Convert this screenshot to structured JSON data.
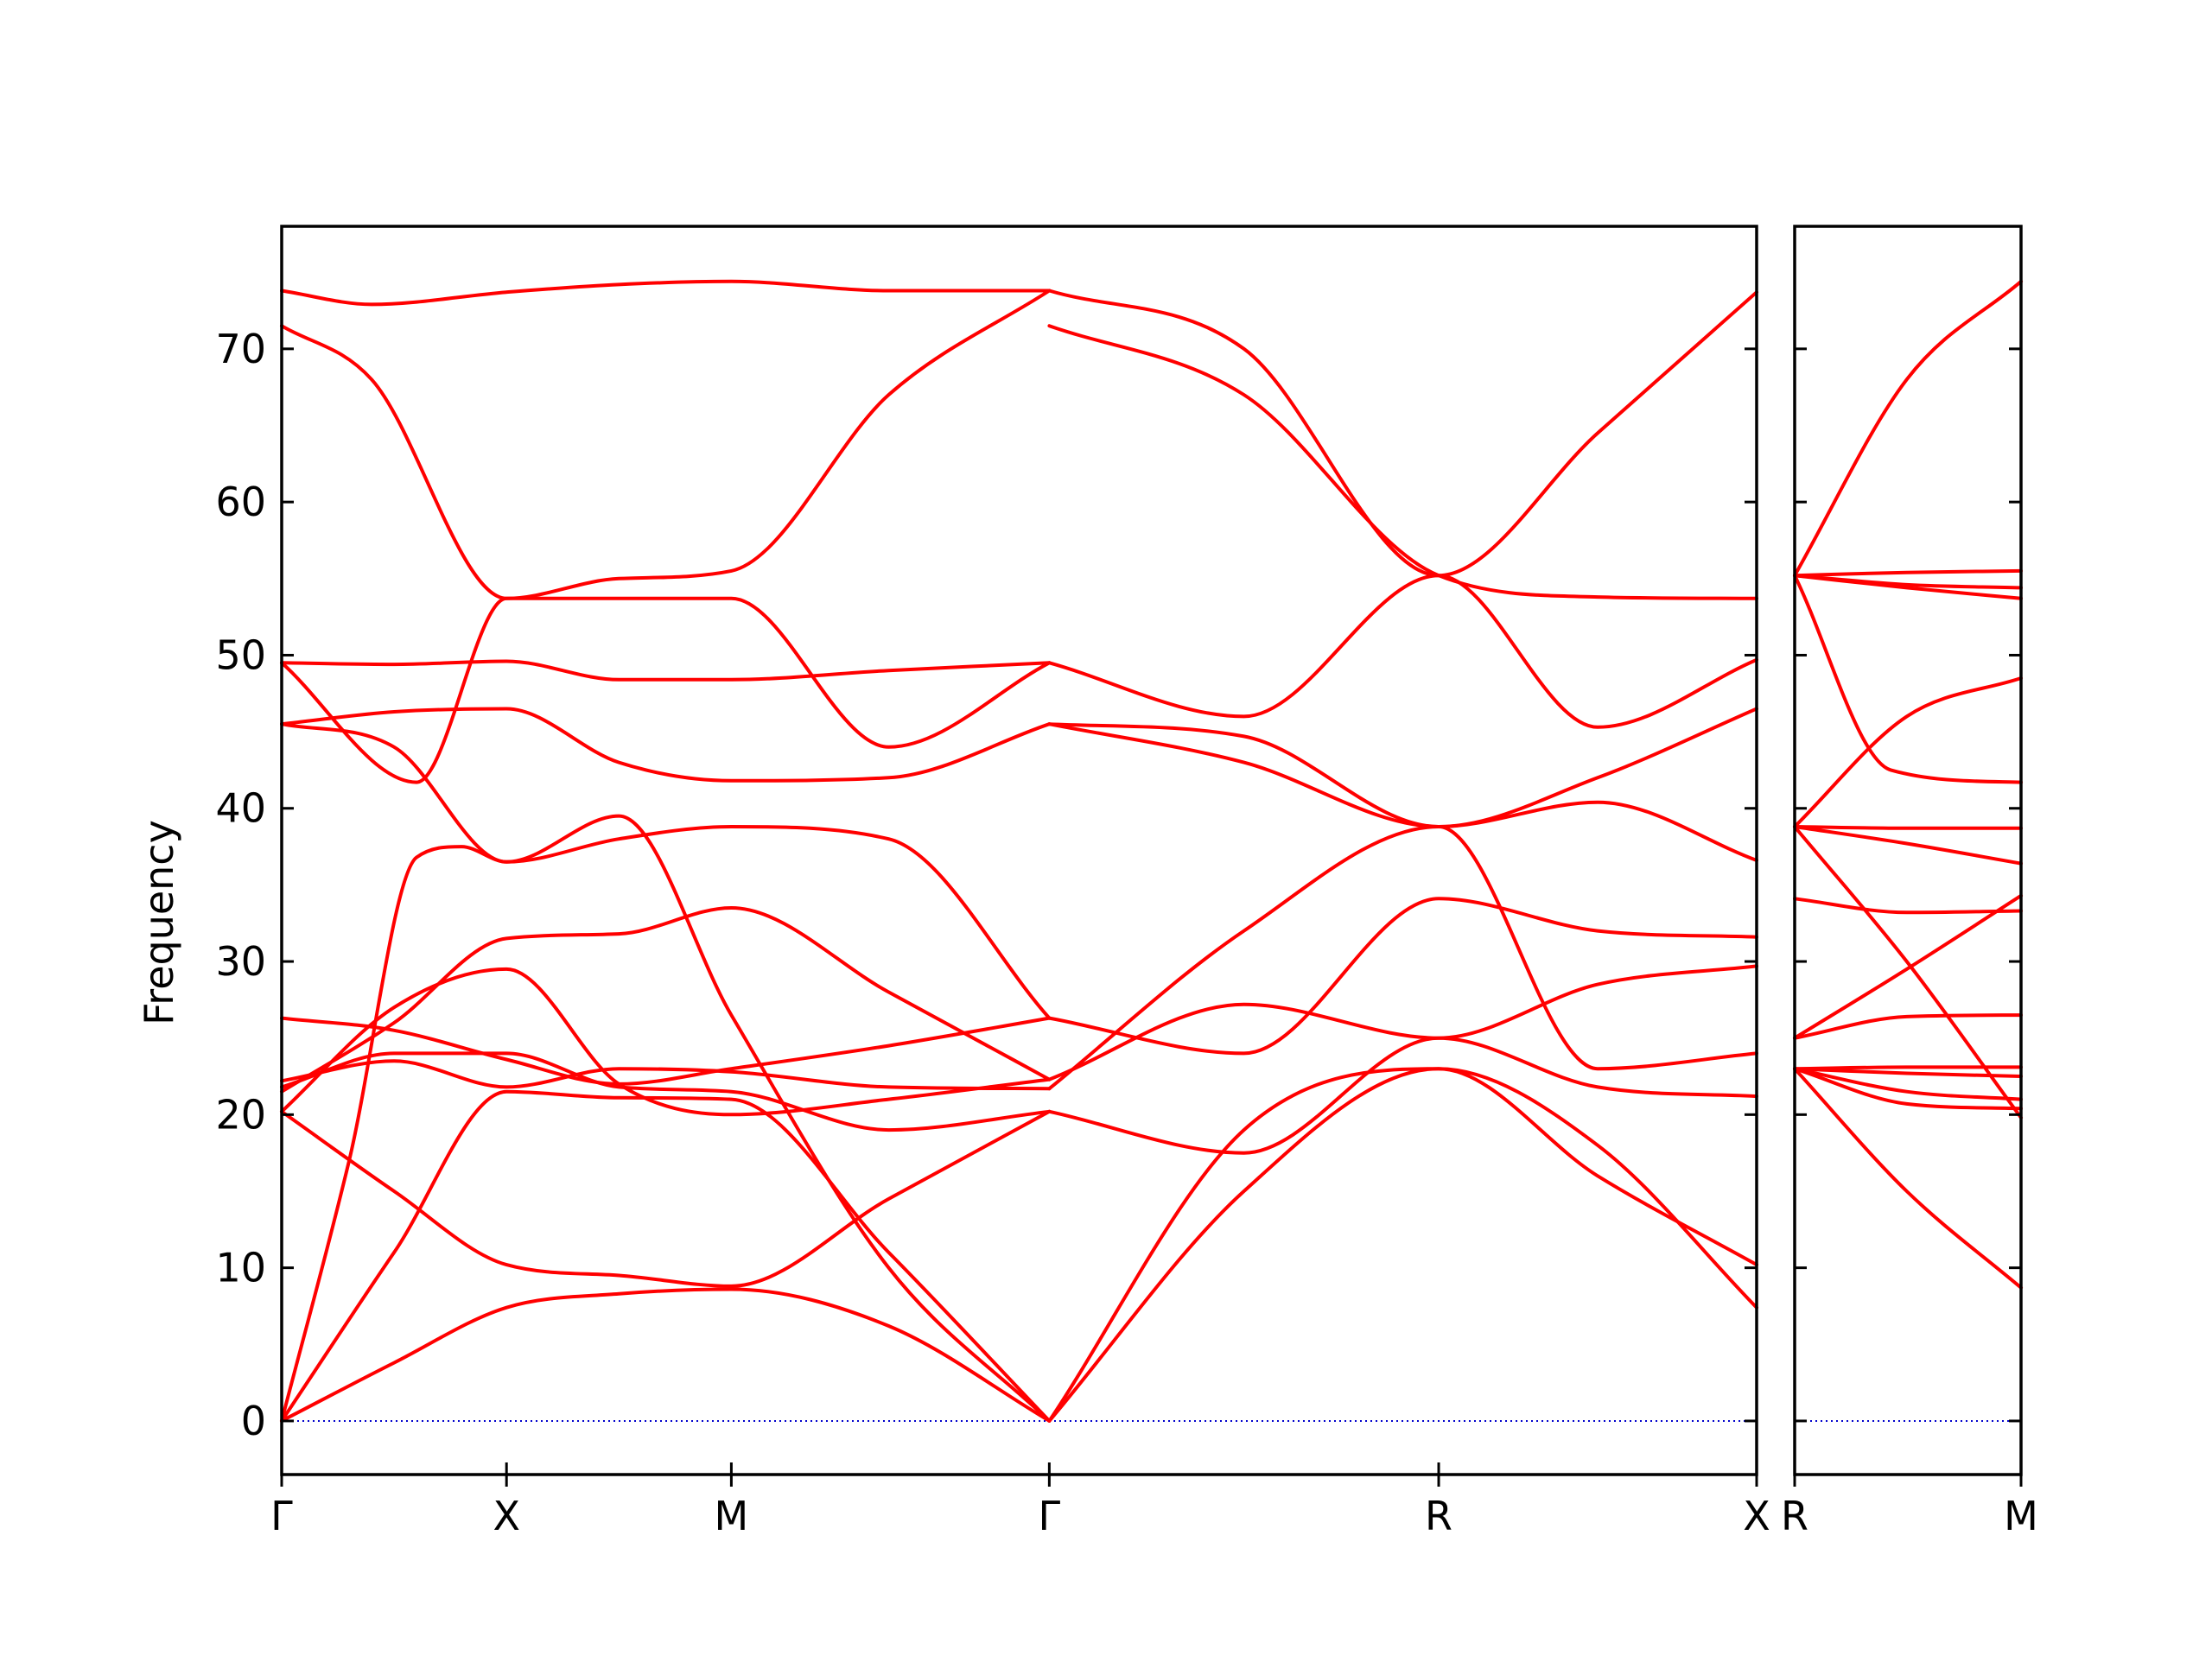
{
  "chart_data": {
    "type": "line",
    "title": "",
    "ylabel": "Frequency",
    "xlabel": "",
    "ylim": [
      -3.5,
      78
    ],
    "yticks": [
      0,
      10,
      20,
      30,
      40,
      50,
      60,
      70
    ],
    "ytick_labels": [
      "0",
      "10",
      "20",
      "30",
      "40",
      "50",
      "60",
      "70"
    ],
    "grid": false,
    "legend": "none",
    "colors": {
      "bands": "#ff0000",
      "zero_line": "#0000cc",
      "axes": "#000000"
    },
    "segments": [
      {
        "name": "",
        "path": [
          "Γ",
          "X",
          "M",
          "Γ",
          "R",
          "X"
        ],
        "kpoints": [
          0.0,
          0.5,
          1.0,
          1.7071,
          2.5731,
          3.2802
        ],
        "bands": [
          [
            [
              0,
              0
            ],
            [
              0.25,
              3.8
            ],
            [
              0.5,
              7.4
            ],
            [
              0.75,
              8.3
            ],
            [
              1.0,
              8.6
            ],
            [
              1.35,
              6.2
            ],
            [
              1.7071,
              0
            ]
          ],
          [
            [
              0,
              0
            ],
            [
              0.25,
              11
            ],
            [
              0.5,
              21.5
            ],
            [
              0.75,
              21.1
            ],
            [
              1.0,
              21.0
            ],
            [
              1.35,
              11
            ],
            [
              1.7071,
              0
            ]
          ],
          [
            [
              0,
              0
            ],
            [
              0.15,
              17
            ],
            [
              0.3,
              36.8
            ],
            [
              0.4,
              37.5
            ],
            [
              0.5,
              36.5
            ],
            [
              0.75,
              39.5
            ],
            [
              1.0,
              26.5
            ],
            [
              1.35,
              10
            ],
            [
              1.7071,
              0
            ]
          ],
          [
            [
              0,
              20.2
            ],
            [
              0.25,
              15
            ],
            [
              0.5,
              10.2
            ],
            [
              0.75,
              9.5
            ],
            [
              1.0,
              8.8
            ],
            [
              1.35,
              14.5
            ],
            [
              1.7071,
              20.2
            ]
          ],
          [
            [
              0,
              20.2
            ],
            [
              0.25,
              27
            ],
            [
              0.5,
              29.5
            ],
            [
              0.75,
              22
            ],
            [
              1.0,
              20.0
            ],
            [
              1.35,
              21
            ],
            [
              1.7071,
              22.3
            ]
          ],
          [
            [
              0,
              21.5
            ],
            [
              0.25,
              26
            ],
            [
              0.5,
              31.5
            ],
            [
              0.75,
              31.8
            ],
            [
              1.0,
              33.5
            ],
            [
              1.35,
              28
            ],
            [
              1.7071,
              22.3
            ]
          ],
          [
            [
              0,
              21.8
            ],
            [
              0.25,
              24
            ],
            [
              0.5,
              24
            ],
            [
              0.75,
              21.8
            ],
            [
              1.0,
              21.5
            ],
            [
              1.35,
              19
            ],
            [
              1.7071,
              20.2
            ]
          ],
          [
            [
              0,
              22.2
            ],
            [
              0.25,
              23.5
            ],
            [
              0.5,
              21.8
            ],
            [
              0.75,
              23
            ],
            [
              1.0,
              22.8
            ],
            [
              1.35,
              21.8
            ],
            [
              1.7071,
              21.7
            ]
          ],
          [
            [
              0,
              26.3
            ],
            [
              0.25,
              25.5
            ],
            [
              0.5,
              23.6
            ],
            [
              0.75,
              22
            ],
            [
              1.0,
              23
            ],
            [
              1.35,
              24.5
            ],
            [
              1.7071,
              26.3
            ]
          ],
          [
            [
              0,
              45.5
            ],
            [
              0.25,
              44
            ],
            [
              0.5,
              36.5
            ],
            [
              0.75,
              38
            ],
            [
              1.0,
              38.8
            ],
            [
              1.35,
              38
            ],
            [
              1.7071,
              26.3
            ]
          ],
          [
            [
              0,
              45.5
            ],
            [
              0.25,
              46.3
            ],
            [
              0.5,
              46.5
            ],
            [
              0.75,
              43
            ],
            [
              1.0,
              41.8
            ],
            [
              1.35,
              42
            ],
            [
              1.7071,
              45.5
            ]
          ],
          [
            [
              0,
              49.5
            ],
            [
              0.3,
              41.7
            ],
            [
              0.5,
              53.7
            ],
            [
              0.75,
              53.7
            ],
            [
              1.0,
              53.7
            ],
            [
              1.35,
              44
            ],
            [
              1.7071,
              49.5
            ]
          ],
          [
            [
              0,
              49.5
            ],
            [
              0.25,
              49.4
            ],
            [
              0.5,
              49.6
            ],
            [
              0.75,
              48.4
            ],
            [
              1.0,
              48.4
            ],
            [
              1.35,
              49
            ],
            [
              1.7071,
              49.5
            ]
          ],
          [
            [
              0,
              71.5
            ],
            [
              0.2,
              68
            ],
            [
              0.5,
              53.7
            ],
            [
              0.75,
              55
            ],
            [
              1.0,
              55.5
            ],
            [
              1.35,
              67
            ],
            [
              1.7071,
              73.8
            ]
          ],
          [
            [
              0,
              73.8
            ],
            [
              0.2,
              72.9
            ],
            [
              0.5,
              73.7
            ],
            [
              0.75,
              74.2
            ],
            [
              1.0,
              74.4
            ],
            [
              1.35,
              73.8
            ],
            [
              1.7071,
              73.8
            ]
          ],
          [
            [
              1.7071,
              73.8
            ],
            [
              2.14,
              70
            ],
            [
              2.5731,
              55.2
            ],
            [
              2.9266,
              64.5
            ],
            [
              3.2802,
              73.7
            ]
          ],
          [
            [
              1.7071,
              71.5
            ],
            [
              2.14,
              67
            ],
            [
              2.5731,
              55.2
            ],
            [
              2.9266,
              53.8
            ],
            [
              3.2802,
              53.7
            ]
          ],
          [
            [
              1.7071,
              49.5
            ],
            [
              2.14,
              46
            ],
            [
              2.5731,
              55.2
            ],
            [
              2.9266,
              45.3
            ],
            [
              3.2802,
              49.7
            ]
          ],
          [
            [
              1.7071,
              45.5
            ],
            [
              2.14,
              44.7
            ],
            [
              2.5731,
              38.8
            ],
            [
              2.9266,
              42
            ],
            [
              3.2802,
              46.5
            ]
          ],
          [
            [
              1.7071,
              45.5
            ],
            [
              2.14,
              43
            ],
            [
              2.5731,
              38.8
            ],
            [
              2.9266,
              40.4
            ],
            [
              3.2802,
              36.6
            ]
          ],
          [
            [
              1.7071,
              26.3
            ],
            [
              2.14,
              24
            ],
            [
              2.5731,
              34.1
            ],
            [
              2.9266,
              32
            ],
            [
              3.2802,
              31.6
            ]
          ],
          [
            [
              1.7071,
              22.3
            ],
            [
              2.14,
              27.2
            ],
            [
              2.5731,
              25
            ],
            [
              2.9266,
              28.5
            ],
            [
              3.2802,
              29.7
            ]
          ],
          [
            [
              1.7071,
              21.7
            ],
            [
              2.14,
              32
            ],
            [
              2.5731,
              38.8
            ],
            [
              2.9266,
              23
            ],
            [
              3.2802,
              24
            ]
          ],
          [
            [
              1.7071,
              20.2
            ],
            [
              2.14,
              17.5
            ],
            [
              2.5731,
              25
            ],
            [
              2.9266,
              21.8
            ],
            [
              3.2802,
              21.2
            ]
          ],
          [
            [
              1.7071,
              0
            ],
            [
              2.14,
              19
            ],
            [
              2.5731,
              23
            ],
            [
              2.9266,
              18
            ],
            [
              3.2802,
              7.4
            ]
          ],
          [
            [
              1.7071,
              0
            ],
            [
              2.14,
              15
            ],
            [
              2.5731,
              23
            ],
            [
              2.9266,
              16
            ],
            [
              3.2802,
              10.2
            ]
          ]
        ]
      },
      {
        "name": "",
        "path": [
          "R",
          "M"
        ],
        "kpoints": [
          0.0,
          0.7071
        ],
        "bands": [
          [
            [
              0,
              55.2
            ],
            [
              0.35,
              68
            ],
            [
              0.7071,
              74.4
            ]
          ],
          [
            [
              0,
              55.2
            ],
            [
              0.35,
              55.4
            ],
            [
              0.7071,
              55.5
            ]
          ],
          [
            [
              0,
              55.2
            ],
            [
              0.35,
              54.6
            ],
            [
              0.7071,
              54.4
            ]
          ],
          [
            [
              0,
              55.2
            ],
            [
              0.35,
              54.4
            ],
            [
              0.7071,
              53.7
            ]
          ],
          [
            [
              0,
              55.2
            ],
            [
              0.3,
              42.5
            ],
            [
              0.7071,
              41.7
            ]
          ],
          [
            [
              0,
              38.8
            ],
            [
              0.35,
              46
            ],
            [
              0.7071,
              48.5
            ]
          ],
          [
            [
              0,
              38.8
            ],
            [
              0.35,
              38.7
            ],
            [
              0.7071,
              38.7
            ]
          ],
          [
            [
              0,
              38.8
            ],
            [
              0.35,
              37.7
            ],
            [
              0.7071,
              36.4
            ]
          ],
          [
            [
              0,
              38.8
            ],
            [
              0.35,
              30
            ],
            [
              0.7071,
              19.8
            ]
          ],
          [
            [
              0,
              34.1
            ],
            [
              0.35,
              33.2
            ],
            [
              0.7071,
              33.3
            ]
          ],
          [
            [
              0,
              25
            ],
            [
              0.35,
              29.5
            ],
            [
              0.7071,
              34.3
            ]
          ],
          [
            [
              0,
              25
            ],
            [
              0.35,
              26.4
            ],
            [
              0.7071,
              26.5
            ]
          ],
          [
            [
              0,
              23
            ],
            [
              0.35,
              23.1
            ],
            [
              0.7071,
              23.1
            ]
          ],
          [
            [
              0,
              23
            ],
            [
              0.35,
              22.7
            ],
            [
              0.7071,
              22.5
            ]
          ],
          [
            [
              0,
              23
            ],
            [
              0.35,
              21.5
            ],
            [
              0.7071,
              21
            ]
          ],
          [
            [
              0,
              23
            ],
            [
              0.35,
              20.7
            ],
            [
              0.7071,
              20.4
            ]
          ],
          [
            [
              0,
              23
            ],
            [
              0.35,
              15
            ],
            [
              0.7071,
              8.7
            ]
          ]
        ]
      }
    ]
  }
}
